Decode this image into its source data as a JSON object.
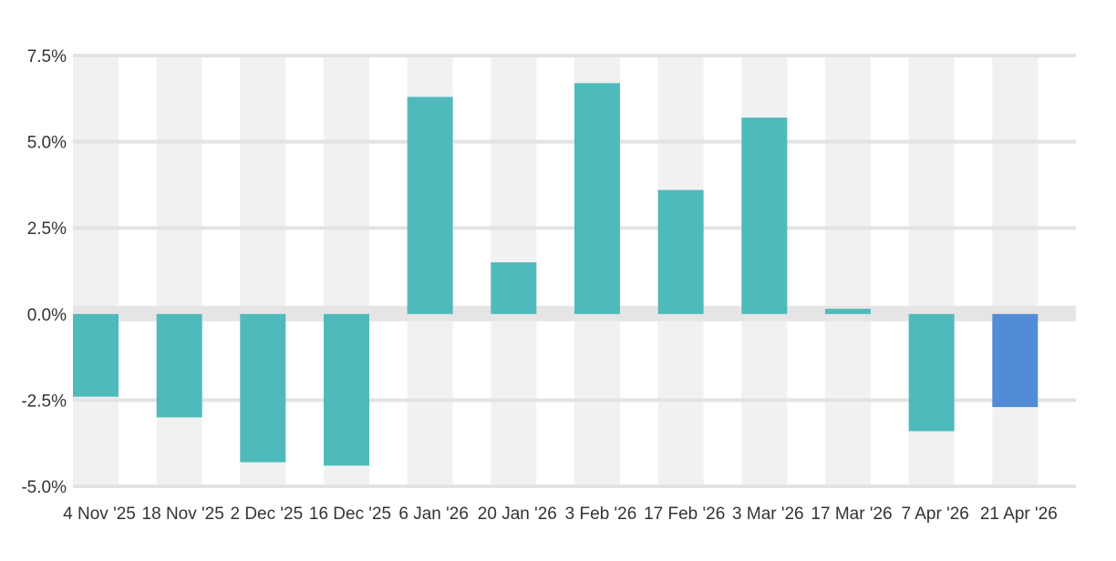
{
  "chart_data": {
    "type": "bar",
    "title": "",
    "xlabel": "",
    "ylabel": "",
    "categories": [
      "4 Nov '25",
      "18 Nov '25",
      "2 Dec '25",
      "16 Dec '25",
      "6 Jan '26",
      "20 Jan '26",
      "3 Feb '26",
      "17 Feb '26",
      "3 Mar '26",
      "17 Mar '26",
      "7 Apr '26",
      "21 Apr '26"
    ],
    "values": [
      -2.4,
      -3.0,
      -4.3,
      -4.4,
      6.3,
      1.5,
      6.7,
      3.6,
      5.7,
      0.15,
      -3.4,
      -2.7
    ],
    "ylim": [
      -5.0,
      7.5
    ],
    "yticks": [
      7.5,
      5.0,
      2.5,
      0.0,
      -2.5,
      -5.0
    ],
    "ytick_labels": [
      "7.5%",
      "5.0%",
      "2.5%",
      "0.0%",
      "-2.5%",
      "-5.0%"
    ],
    "grid": true,
    "legend": "none",
    "colors": {
      "bar": "#4fbabc",
      "highlight_bar": "#528cd6",
      "band": "#f1f1f1",
      "zero_band": "#e5e5e5",
      "gridline": "#e3e3e3",
      "text": "#333333"
    },
    "highlight_index": 11
  }
}
